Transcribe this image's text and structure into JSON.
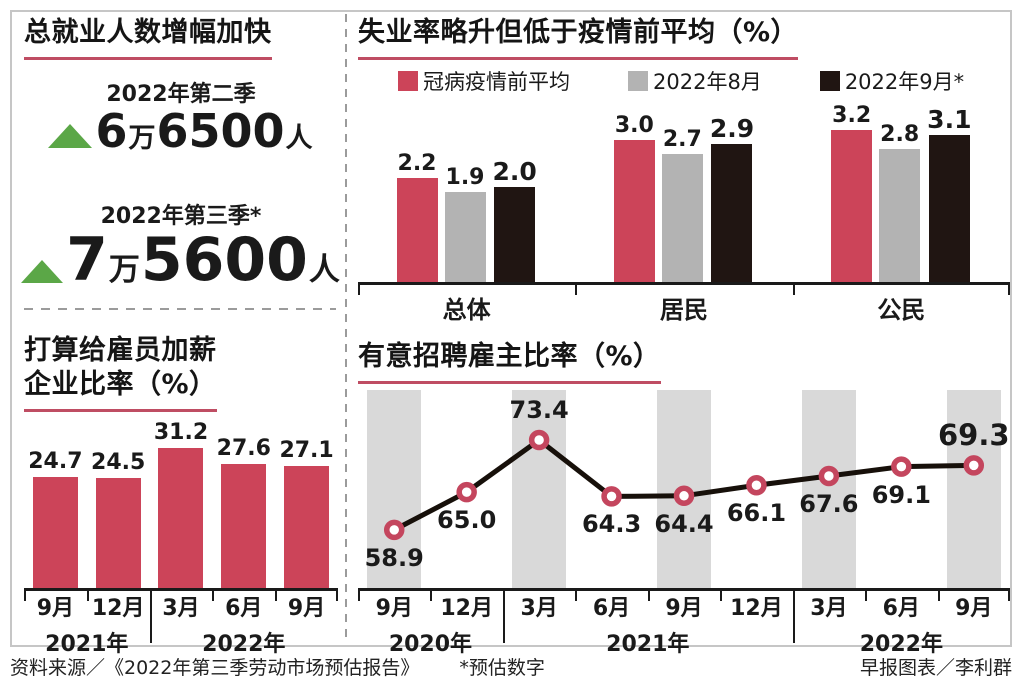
{
  "colors": {
    "rose": "#cc4459",
    "gray_bar": "#b3b3b3",
    "black_bar": "#201512",
    "band_gray": "#d9d9d9",
    "green_up": "#5ba747",
    "underline_red": "#bf4d63",
    "line_black": "#17100a",
    "marker_ring": "#c4465e"
  },
  "panels": {
    "employment": {
      "title": "总就业人数增幅加快",
      "stats": [
        {
          "label": "2022年第二季",
          "big1": "6",
          "small1": "万",
          "big2": "6500",
          "small2": "人"
        },
        {
          "label": "2022年第三季*",
          "big1": "7",
          "small1": "万",
          "big2": "5600",
          "small2": "人"
        }
      ]
    }
  },
  "chart_data": [
    {
      "id": "unemployment-rate",
      "type": "bar",
      "title": "失业率略升但低于疫情前平均（%）",
      "categories": [
        "总体",
        "居民",
        "公民"
      ],
      "series": [
        {
          "name": "冠病疫情前平均",
          "color": "#cc4459",
          "values": [
            2.2,
            3.0,
            3.2
          ]
        },
        {
          "name": "2022年8月",
          "color": "#b3b3b3",
          "values": [
            1.9,
            2.7,
            2.8
          ]
        },
        {
          "name": "2022年9月*",
          "color": "#201512",
          "values": [
            2.0,
            2.9,
            3.1
          ],
          "emphasis": true
        }
      ],
      "ylim": [
        0,
        3.5
      ],
      "legend_position": "top",
      "grid": false
    },
    {
      "id": "payraise-companies",
      "type": "bar",
      "title_lines": [
        "打算给雇员加薪",
        "企业比率（%）"
      ],
      "categories": [
        "9月",
        "12月",
        "3月",
        "6月",
        "9月"
      ],
      "values": [
        24.7,
        24.5,
        31.2,
        27.6,
        27.1
      ],
      "bar_color": "#cc4459",
      "year_groups": [
        {
          "label": "2021年",
          "span": 2
        },
        {
          "label": "2022年",
          "span": 3
        }
      ],
      "ylim": [
        0,
        35
      ],
      "grid": false
    },
    {
      "id": "hiring-intent",
      "type": "line",
      "title": "有意招聘雇主比率（%）",
      "categories": [
        "9月",
        "12月",
        "3月",
        "6月",
        "9月",
        "12月",
        "3月",
        "6月",
        "9月"
      ],
      "values": [
        58.9,
        65.0,
        73.4,
        64.3,
        64.4,
        66.1,
        67.6,
        69.1,
        69.3
      ],
      "label_positions": [
        "below",
        "below",
        "above",
        "below",
        "below",
        "below",
        "below",
        "below",
        "above"
      ],
      "emphasis_index": 8,
      "year_groups": [
        {
          "label": "2020年",
          "span": 2
        },
        {
          "label": "2021年",
          "span": 4
        },
        {
          "label": "2022年",
          "span": 3
        }
      ],
      "band_columns": [
        0,
        2,
        4,
        6,
        8
      ],
      "band_color": "#d9d9d9",
      "line_color": "#17100a",
      "marker_color": "#c4465e",
      "ylim": [
        55,
        81
      ],
      "grid": false
    }
  ],
  "footer": {
    "source": "资料来源／《2022年第三季劳动市场预估报告》",
    "note": "*预估数字",
    "credit": "早报图表／李利群"
  }
}
